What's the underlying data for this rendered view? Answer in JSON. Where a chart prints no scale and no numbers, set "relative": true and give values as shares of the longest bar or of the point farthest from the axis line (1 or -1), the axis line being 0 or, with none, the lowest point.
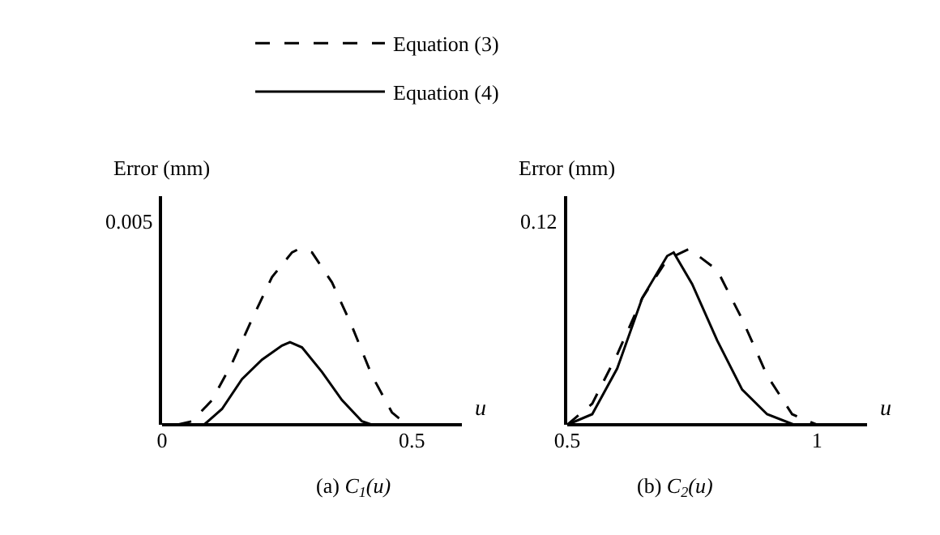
{
  "chart_data": [
    {
      "type": "line",
      "title": "(a) C$_{1}$(u)",
      "xlabel": "u",
      "ylabel": "Error (mm)",
      "relative": true,
      "xlim": [
        0,
        0.6
      ],
      "xticks": [
        0,
        0.5
      ],
      "annotations": [
        "0.005"
      ],
      "legend": "top",
      "series": [
        {
          "name": "Equation (3)",
          "color": "#000000",
          "line_style": "dashed",
          "x": [
            0.03,
            0.06,
            0.1,
            0.14,
            0.18,
            0.22,
            0.26,
            0.274,
            0.3,
            0.34,
            0.38,
            0.42,
            0.46,
            0.49
          ],
          "values": [
            0,
            0.02,
            0.14,
            0.35,
            0.6,
            0.84,
            0.98,
            1,
            0.98,
            0.81,
            0.56,
            0.28,
            0.07,
            0
          ]
        },
        {
          "name": "Equation (4)",
          "color": "#000000",
          "line_style": "solid",
          "x": [
            0.084,
            0.12,
            0.16,
            0.2,
            0.24,
            0.256,
            0.28,
            0.32,
            0.36,
            0.4,
            0.42
          ],
          "values": [
            0,
            0.09,
            0.26,
            0.37,
            0.45,
            0.47,
            0.44,
            0.3,
            0.14,
            0.02,
            0
          ]
        }
      ]
    },
    {
      "type": "line",
      "title": "(b) C$_{2}$(u)",
      "xlabel": "u",
      "ylabel": "Error (mm)",
      "relative": true,
      "xlim": [
        0.5,
        1.1
      ],
      "xticks": [
        0.5,
        1
      ],
      "annotations": [
        "0.12"
      ],
      "series": [
        {
          "color": "#000000",
          "line_style": "dashed",
          "x": [
            0.5,
            0.55,
            0.6,
            0.65,
            0.7,
            0.744,
            0.8,
            0.85,
            0.9,
            0.95,
            1.0
          ],
          "values": [
            0,
            0.12,
            0.4,
            0.72,
            0.94,
            1,
            0.88,
            0.6,
            0.28,
            0.06,
            0
          ]
        },
        {
          "color": "#000000",
          "line_style": "solid",
          "x": [
            0.5,
            0.55,
            0.6,
            0.65,
            0.7,
            0.713,
            0.75,
            0.8,
            0.85,
            0.9,
            0.954
          ],
          "values": [
            0,
            0.06,
            0.32,
            0.72,
            0.96,
            0.98,
            0.8,
            0.48,
            0.2,
            0.06,
            0
          ]
        }
      ]
    }
  ]
}
